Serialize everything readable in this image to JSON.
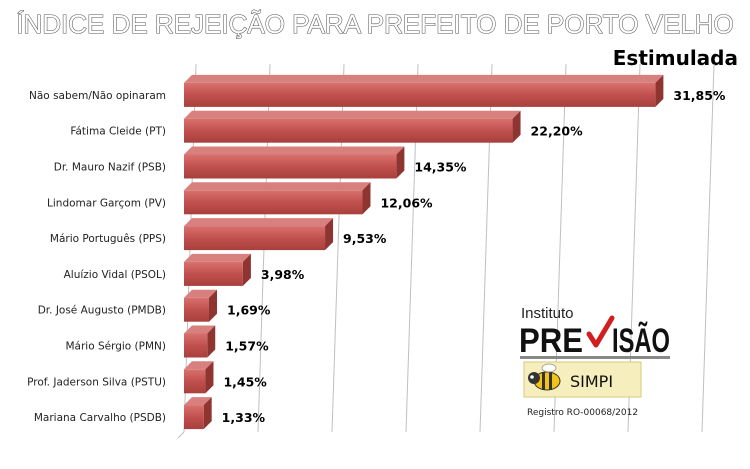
{
  "chart_data": {
    "type": "bar",
    "orientation": "horizontal",
    "title": "ÍNDICE DE REJEIÇÃO PARA PREFEITO DE PORTO VELHO",
    "subtitle": "Estimulada",
    "categories": [
      "Não sabem/Não opinaram",
      "Fátima Cleide (PT)",
      "Dr. Mauro Nazif (PSB)",
      "Lindomar Garçom (PV)",
      "Mário Português (PPS)",
      "Aluízio Vidal (PSOL)",
      "Dr. José Augusto (PMDB)",
      "Mário Sérgio (PMN)",
      "Prof. Jaderson Silva (PSTU)",
      "Mariana Carvalho (PSDB)"
    ],
    "values": [
      31.85,
      22.2,
      14.35,
      12.06,
      9.53,
      3.98,
      1.69,
      1.57,
      1.45,
      1.33
    ],
    "value_labels": [
      "31,85%",
      "22,20%",
      "14,35%",
      "12,06%",
      "9,53%",
      "3,98%",
      "1,69%",
      "1,57%",
      "1,45%",
      "1,33%"
    ],
    "xlim": [
      0,
      35
    ],
    "grid": true,
    "bar_color": "#c0504d"
  },
  "logo": {
    "instituto": "Instituto",
    "previsao_left": "PRE",
    "previsao_right": "ISÃO",
    "simpi": "SIMPI",
    "registro": "Registro  RO-00068/2012"
  }
}
